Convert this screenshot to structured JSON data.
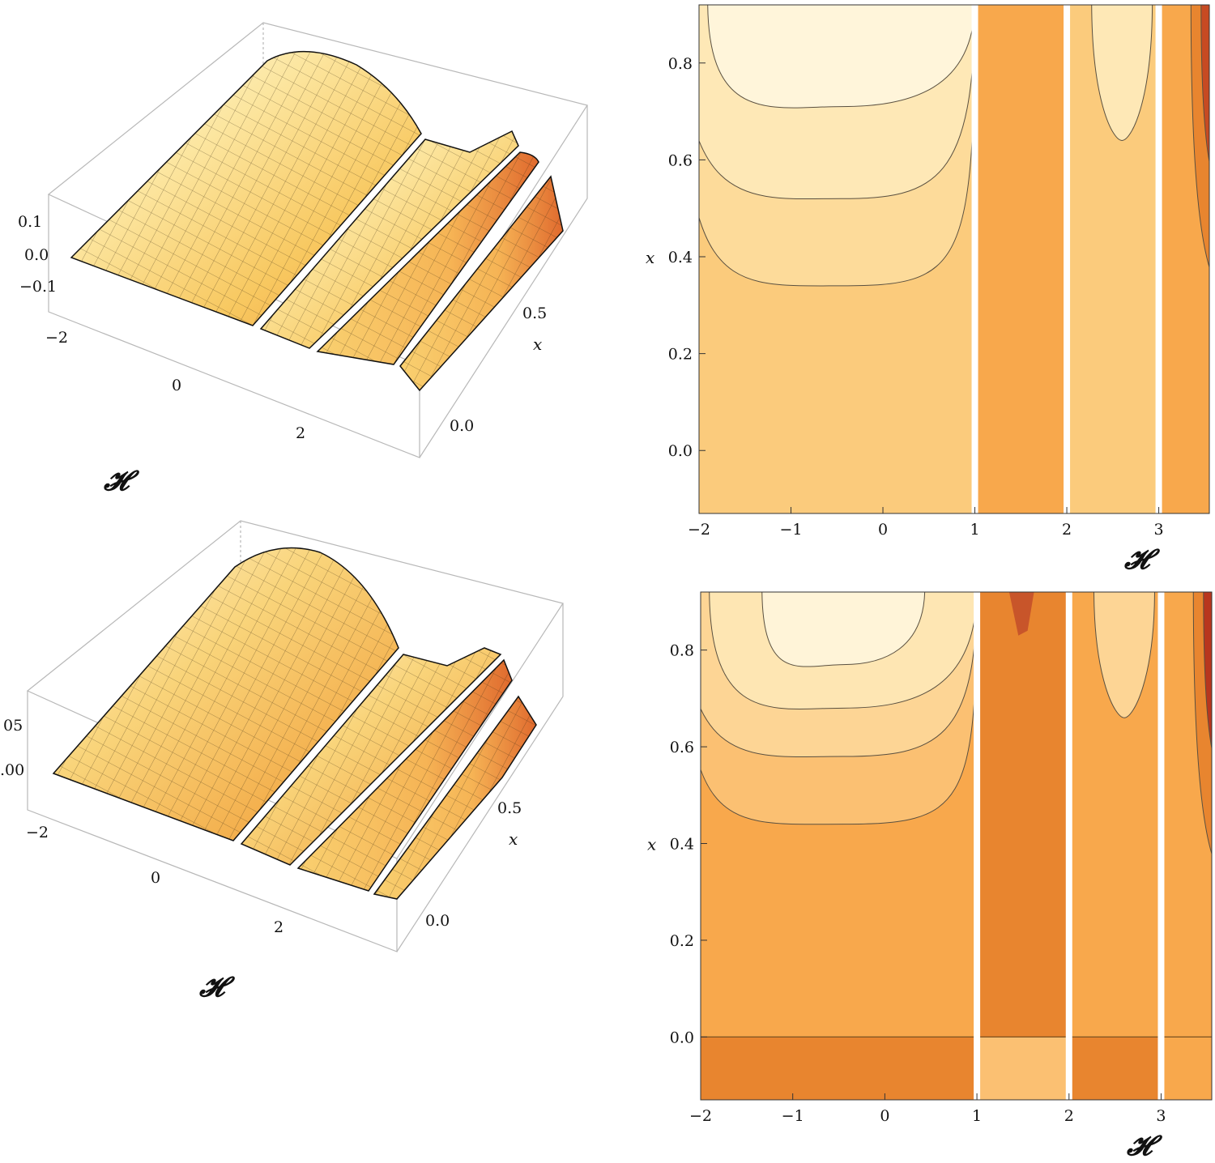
{
  "chart_data": [
    {
      "type": "surface3d",
      "panel": "top-left",
      "xlabel": "𝓗",
      "ylabel": "x",
      "kappa_ticks": [
        "−2",
        "0",
        "2"
      ],
      "x_ticks": [
        "0.0",
        "0.5"
      ],
      "z_ticks": [
        "0.1",
        "0.0",
        "−0.1"
      ],
      "kappa_range": [
        -2,
        3.5
      ],
      "x_range": [
        -0.13,
        0.9
      ],
      "gaps_at_kappa": [
        1,
        2,
        3
      ],
      "peak": {
        "kappa": -0.5,
        "x": 0.9
      }
    },
    {
      "type": "surface3d",
      "panel": "bottom-left",
      "xlabel": "𝓗",
      "ylabel": "x",
      "kappa_ticks": [
        "−2",
        "0",
        "2"
      ],
      "x_ticks": [
        "0.0",
        "0.5"
      ],
      "z_ticks": [
        "05",
        ".00"
      ],
      "kappa_range": [
        -2,
        3.5
      ],
      "x_range": [
        -0.13,
        0.9
      ],
      "gaps_at_kappa": [
        1,
        2,
        3
      ],
      "peak": {
        "kappa": -0.5,
        "x": 0.9
      }
    },
    {
      "type": "contour",
      "panel": "top-right",
      "xlabel": "𝓗",
      "ylabel": "x",
      "x_ticks": [
        "−2",
        "−1",
        "0",
        "1",
        "2",
        "3"
      ],
      "x_tick_values": [
        -2,
        -1,
        0,
        1,
        2,
        3
      ],
      "y_ticks": [
        "0.0",
        "0.2",
        "0.4",
        "0.6",
        "0.8"
      ],
      "y_tick_values": [
        0,
        0.2,
        0.4,
        0.6,
        0.8
      ],
      "xlim": [
        -2,
        3.55
      ],
      "ylim": [
        -0.13,
        0.92
      ],
      "vertical_gaps": [
        1,
        2,
        3
      ],
      "contour_levels_min_x": [
        0.34,
        0.52,
        0.71
      ],
      "contour_center_kappa": -0.45,
      "side_lobe": {
        "kappa": 2.6,
        "min_x": 0.64
      },
      "colors": [
        "#FBCB7C",
        "#FDDB9A",
        "#FEE8B6",
        "#FFF5DA",
        "#F8A84C",
        "#E8852F"
      ]
    },
    {
      "type": "contour",
      "panel": "bottom-right",
      "xlabel": "𝓗",
      "ylabel": "x",
      "x_ticks": [
        "−2",
        "−1",
        "0",
        "1",
        "2",
        "3"
      ],
      "x_tick_values": [
        -2,
        -1,
        0,
        1,
        2,
        3
      ],
      "y_ticks": [
        "0.0",
        "0.2",
        "0.4",
        "0.6",
        "0.8"
      ],
      "y_tick_values": [
        0,
        0.2,
        0.4,
        0.6,
        0.8
      ],
      "xlim": [
        -2,
        3.55
      ],
      "ylim": [
        -0.13,
        0.92
      ],
      "vertical_gaps": [
        1,
        2,
        3
      ],
      "contour_levels_min_x": [
        0.44,
        0.58,
        0.68,
        0.77
      ],
      "contour_center_kappa": -0.45,
      "side_lobe": {
        "kappa": 2.6,
        "min_x": 0.66
      },
      "horizontal_break_at_x": 0.0,
      "colors": [
        "#F8A84C",
        "#FBC072",
        "#FDD595",
        "#FEE6B3",
        "#FFF4D8",
        "#E8852F",
        "#B8361E"
      ]
    }
  ]
}
